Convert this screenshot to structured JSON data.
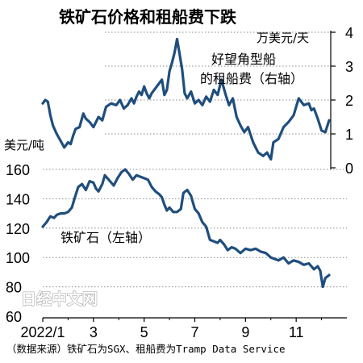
{
  "chart_data": {
    "type": "line",
    "title": "铁矿石价格和租船费下跌",
    "source": "（数据来源）铁矿石为SGX、租船费为Tramp Data Service",
    "watermark": "日经中文网",
    "x_ticks": [
      "2022/1",
      "3",
      "5",
      "7",
      "9",
      "11"
    ],
    "line_color": "#1f4e7d",
    "grid": "dotted horizontal",
    "left_axis": {
      "unit": "美元/吨",
      "ylim": [
        60,
        165
      ],
      "ticks": [
        "60",
        "80",
        "100",
        "120",
        "140",
        "160"
      ]
    },
    "right_axis": {
      "unit": "万美元/天",
      "ylim": [
        0,
        4
      ],
      "ticks": [
        "0",
        "1",
        "2",
        "3",
        "4"
      ]
    },
    "series": [
      {
        "name": "铁矿石（左轴）",
        "axis": "left",
        "x_months": [
          0.0,
          0.15,
          0.3,
          0.45,
          0.55,
          0.7,
          0.85,
          1.0,
          1.15,
          1.25,
          1.4,
          1.55,
          1.7,
          1.85,
          2.0,
          2.1,
          2.2,
          2.35,
          2.45,
          2.6,
          2.8,
          2.95,
          3.1,
          3.25,
          3.4,
          3.55,
          3.7,
          3.85,
          4.0,
          4.15,
          4.3,
          4.45,
          4.6,
          4.7,
          4.8,
          4.9,
          5.0,
          5.15,
          5.3,
          5.45,
          5.55,
          5.7,
          5.85,
          6.0,
          6.15,
          6.3,
          6.45,
          6.6,
          6.75,
          6.9,
          7.0,
          7.15,
          7.3,
          7.45,
          7.6,
          7.8,
          8.0,
          8.2,
          8.4,
          8.6,
          8.8,
          9.0,
          9.15,
          9.3,
          9.5,
          9.7,
          9.9,
          10.1,
          10.3,
          10.5,
          10.7,
          10.85,
          10.95,
          11.05,
          11.15,
          11.3
        ],
        "values": [
          121,
          124,
          128,
          127,
          129,
          130,
          130,
          131,
          134,
          140,
          148,
          150,
          146,
          152,
          151,
          147,
          145,
          150,
          156,
          153,
          149,
          154,
          158,
          160,
          157,
          153,
          156,
          155,
          154,
          153,
          148,
          145,
          143,
          141,
          136,
          132,
          134,
          131,
          131,
          133,
          144,
          146,
          142,
          133,
          130,
          124,
          121,
          112,
          111,
          110,
          112,
          109,
          105,
          107,
          106,
          103,
          106,
          105,
          106,
          104,
          103,
          100,
          99,
          98,
          100,
          96,
          98,
          97,
          95,
          96,
          92,
          94,
          91,
          80,
          86,
          88
        ]
      },
      {
        "name": "好望角型船的租船费（右轴）",
        "axis": "right",
        "x_months": [
          0.0,
          0.1,
          0.2,
          0.3,
          0.4,
          0.55,
          0.7,
          0.85,
          1.0,
          1.1,
          1.2,
          1.3,
          1.45,
          1.6,
          1.7,
          1.85,
          2.0,
          2.2,
          2.35,
          2.5,
          2.7,
          2.9,
          3.05,
          3.2,
          3.35,
          3.5,
          3.6,
          3.7,
          3.8,
          3.9,
          4.0,
          4.1,
          4.2,
          4.3,
          4.45,
          4.6,
          4.7,
          4.8,
          4.9,
          5.0,
          5.1,
          5.2,
          5.3,
          5.4,
          5.5,
          5.6,
          5.7,
          5.85,
          6.0,
          6.15,
          6.3,
          6.45,
          6.6,
          6.75,
          6.9,
          7.05,
          7.2,
          7.35,
          7.5,
          7.65,
          7.8,
          7.95,
          8.1,
          8.3,
          8.5,
          8.7,
          8.85,
          9.0,
          9.1,
          9.3,
          9.5,
          9.7,
          9.9,
          10.1,
          10.3,
          10.5,
          10.6,
          10.7,
          10.85,
          11.0,
          11.15,
          11.3
        ],
        "values": [
          1.9,
          2.0,
          1.95,
          1.55,
          1.25,
          1.0,
          0.8,
          0.6,
          0.75,
          0.7,
          0.95,
          1.15,
          1.2,
          1.6,
          1.45,
          1.35,
          1.2,
          1.5,
          1.4,
          1.8,
          1.9,
          1.85,
          2.0,
          1.75,
          1.85,
          2.05,
          1.9,
          2.1,
          2.25,
          2.15,
          2.4,
          2.2,
          2.05,
          2.2,
          2.35,
          2.5,
          2.6,
          2.15,
          2.3,
          2.85,
          3.1,
          3.4,
          3.8,
          3.35,
          2.9,
          2.2,
          2.05,
          2.25,
          1.9,
          2.0,
          1.85,
          2.1,
          1.95,
          2.3,
          2.15,
          2.6,
          2.2,
          1.85,
          2.05,
          1.5,
          1.25,
          1.05,
          1.2,
          0.75,
          0.45,
          0.35,
          0.45,
          0.25,
          0.75,
          0.85,
          1.2,
          1.35,
          1.55,
          2.05,
          1.85,
          1.9,
          1.7,
          1.75,
          1.45,
          1.1,
          1.05,
          1.4
        ]
      }
    ]
  }
}
